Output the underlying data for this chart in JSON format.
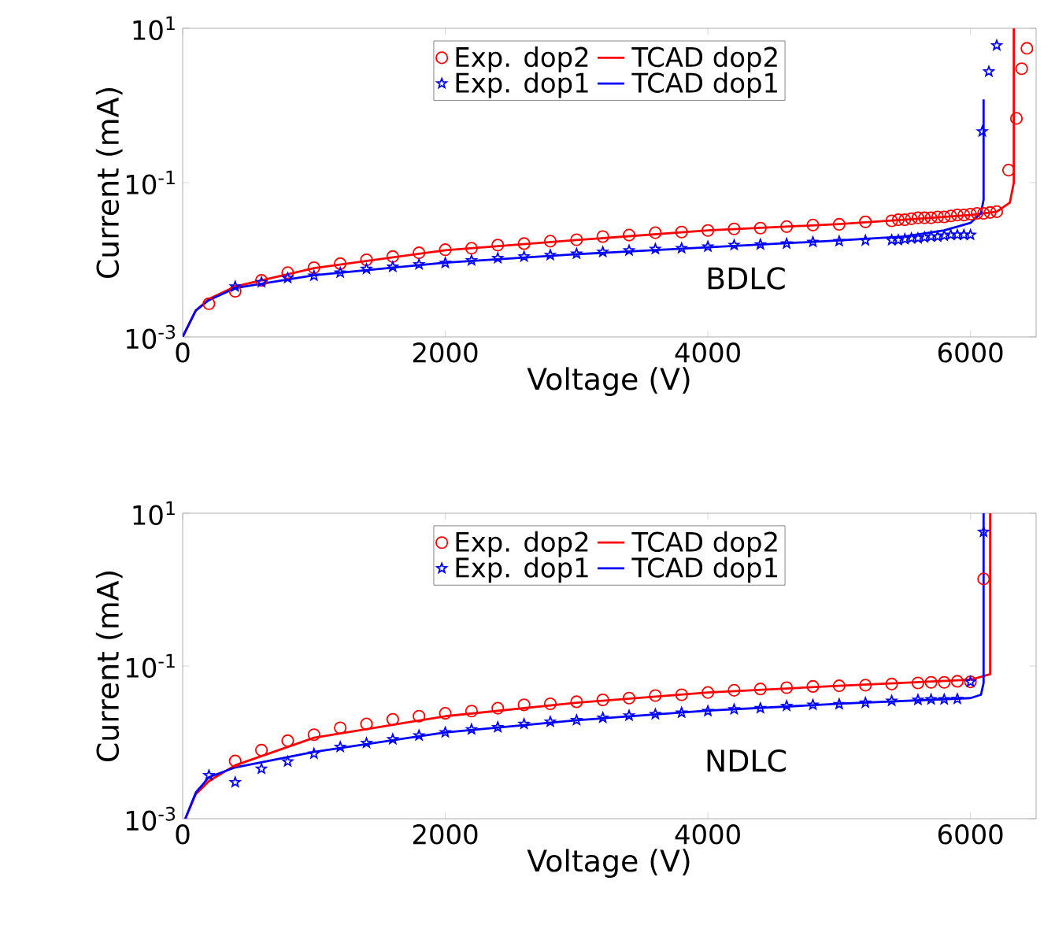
{
  "chart_data": [
    {
      "type": "scatter",
      "xlabel": "Voltage (V)",
      "ylabel": "Current (mA)",
      "log": "y",
      "legend": "top",
      "xlim": [
        0,
        6500
      ],
      "ylim": [
        0.001,
        10
      ],
      "xticks": [
        0,
        2000,
        4000,
        6000
      ],
      "yticks": [
        {
          "value": 0.001,
          "label": "10$^{-3}$"
        },
        {
          "value": 0.1,
          "label": "10$^{-1}$"
        },
        {
          "value": 10,
          "label": "10$^{1}$"
        }
      ],
      "annotations": [
        "BDLC"
      ],
      "series": [
        {
          "name": "Exp. dop2",
          "marker": "circle",
          "color": "#ff0000",
          "x": [
            200,
            400,
            600,
            800,
            1000,
            1200,
            1400,
            1600,
            1800,
            2000,
            2200,
            2400,
            2600,
            2800,
            3000,
            3200,
            3400,
            3600,
            3800,
            4000,
            4200,
            4400,
            4600,
            4800,
            5000,
            5200,
            5400,
            5450,
            5500,
            5550,
            5600,
            5650,
            5700,
            5750,
            5800,
            5850,
            5900,
            5950,
            6000,
            6050,
            6100,
            6150,
            6200,
            6290,
            6350,
            6390,
            6430
          ],
          "values": [
            0.0027,
            0.0039,
            0.0054,
            0.0068,
            0.0079,
            0.0089,
            0.01,
            0.011,
            0.0123,
            0.0135,
            0.0141,
            0.0155,
            0.0162,
            0.0174,
            0.0182,
            0.02,
            0.0209,
            0.0224,
            0.0229,
            0.024,
            0.0251,
            0.0257,
            0.0269,
            0.0282,
            0.0288,
            0.031,
            0.032,
            0.033,
            0.033,
            0.034,
            0.035,
            0.035,
            0.035,
            0.036,
            0.036,
            0.037,
            0.038,
            0.038,
            0.039,
            0.04,
            0.04,
            0.041,
            0.042,
            0.145,
            0.68,
            3.0,
            5.5
          ]
        },
        {
          "name": "TCAD dop2",
          "type": "line",
          "color": "#ff0000",
          "x": [
            0,
            100,
            200,
            400,
            1000,
            2000,
            3000,
            4000,
            5000,
            5600,
            6000,
            6200,
            6300,
            6330,
            6330
          ],
          "values": [
            0.001,
            0.0022,
            0.0031,
            0.0045,
            0.0078,
            0.0133,
            0.018,
            0.024,
            0.029,
            0.034,
            0.038,
            0.042,
            0.055,
            0.1,
            10
          ]
        },
        {
          "name": "Exp. dop1",
          "marker": "star",
          "color": "#0000ff",
          "x": [
            400,
            600,
            800,
            1000,
            1200,
            1400,
            1600,
            1800,
            2000,
            2200,
            2400,
            2600,
            2800,
            3000,
            3200,
            3400,
            3600,
            3800,
            4000,
            4200,
            4400,
            4600,
            4800,
            5000,
            5200,
            5400,
            5450,
            5500,
            5550,
            5600,
            5650,
            5700,
            5750,
            5800,
            5850,
            5900,
            5950,
            6000,
            6090,
            6140,
            6200
          ],
          "values": [
            0.0045,
            0.0051,
            0.0058,
            0.0062,
            0.0068,
            0.0076,
            0.0081,
            0.0087,
            0.0091,
            0.0098,
            0.0105,
            0.011,
            0.0115,
            0.012,
            0.0126,
            0.0132,
            0.0138,
            0.0141,
            0.0148,
            0.0155,
            0.0158,
            0.0162,
            0.017,
            0.0174,
            0.0178,
            0.018,
            0.018,
            0.0185,
            0.019,
            0.019,
            0.0195,
            0.02,
            0.02,
            0.0205,
            0.021,
            0.021,
            0.021,
            0.021,
            0.46,
            2.75,
            6.0
          ]
        },
        {
          "name": "TCAD dop1",
          "type": "line",
          "color": "#0000ff",
          "x": [
            0,
            100,
            200,
            400,
            1000,
            2000,
            3000,
            4000,
            5000,
            5500,
            5800,
            6000,
            6080,
            6100,
            6100
          ],
          "values": [
            0.001,
            0.0022,
            0.003,
            0.0043,
            0.0063,
            0.0092,
            0.0118,
            0.0145,
            0.0178,
            0.02,
            0.024,
            0.03,
            0.04,
            0.06,
            1.2
          ]
        }
      ]
    },
    {
      "type": "scatter",
      "xlabel": "Voltage (V)",
      "ylabel": "Current (mA)",
      "log": "y",
      "legend": "top",
      "xlim": [
        0,
        6500
      ],
      "ylim": [
        0.001,
        10
      ],
      "xticks": [
        0,
        2000,
        4000,
        6000
      ],
      "yticks": [
        {
          "value": 0.001,
          "label": "10$^{-3}$"
        },
        {
          "value": 0.1,
          "label": "10$^{-1}$"
        },
        {
          "value": 10,
          "label": "10$^{1}$"
        }
      ],
      "annotations": [
        "NDLC"
      ],
      "series": [
        {
          "name": "Exp. dop2",
          "marker": "circle",
          "color": "#ff0000",
          "x": [
            400,
            600,
            800,
            1000,
            1200,
            1400,
            1600,
            1800,
            2000,
            2200,
            2400,
            2600,
            2800,
            3000,
            3200,
            3400,
            3600,
            3800,
            4000,
            4200,
            4400,
            4600,
            4800,
            5000,
            5200,
            5400,
            5600,
            5700,
            5800,
            5900,
            6000,
            6100
          ],
          "values": [
            0.0057,
            0.0079,
            0.0105,
            0.0126,
            0.0155,
            0.0174,
            0.02,
            0.022,
            0.024,
            0.0257,
            0.028,
            0.031,
            0.032,
            0.034,
            0.036,
            0.038,
            0.041,
            0.042,
            0.045,
            0.048,
            0.05,
            0.052,
            0.054,
            0.055,
            0.056,
            0.058,
            0.06,
            0.061,
            0.061,
            0.063,
            0.062,
            1.38
          ]
        },
        {
          "name": "TCAD dop2",
          "type": "line",
          "color": "#ff0000",
          "x": [
            20,
            100,
            200,
            400,
            1000,
            2000,
            3000,
            4000,
            5000,
            6000,
            6150,
            6150
          ],
          "values": [
            0.001,
            0.0021,
            0.0031,
            0.005,
            0.0115,
            0.022,
            0.033,
            0.045,
            0.055,
            0.066,
            0.078,
            10
          ]
        },
        {
          "name": "Exp. dop1",
          "marker": "star",
          "color": "#0000ff",
          "x": [
            200,
            400,
            600,
            800,
            1000,
            1200,
            1400,
            1600,
            1800,
            2000,
            2200,
            2400,
            2600,
            2800,
            3000,
            3200,
            3400,
            3600,
            3800,
            4000,
            4200,
            4400,
            4600,
            4800,
            5000,
            5200,
            5400,
            5600,
            5700,
            5800,
            5900,
            6000,
            6100
          ],
          "values": [
            0.0037,
            0.003,
            0.0045,
            0.0056,
            0.0071,
            0.0087,
            0.0098,
            0.011,
            0.0123,
            0.0135,
            0.0148,
            0.0158,
            0.0174,
            0.0186,
            0.0195,
            0.021,
            0.0224,
            0.0234,
            0.0245,
            0.0257,
            0.027,
            0.028,
            0.03,
            0.031,
            0.0316,
            0.033,
            0.035,
            0.036,
            0.0365,
            0.0365,
            0.037,
            0.062,
            5.7
          ]
        },
        {
          "name": "TCAD dop1",
          "type": "line",
          "color": "#0000ff",
          "x": [
            20,
            100,
            200,
            400,
            1000,
            2000,
            3000,
            4000,
            5000,
            6000,
            6080,
            6100,
            6100
          ],
          "values": [
            0.001,
            0.0022,
            0.0035,
            0.0047,
            0.0075,
            0.0135,
            0.0195,
            0.026,
            0.032,
            0.038,
            0.042,
            0.06,
            10
          ]
        }
      ]
    }
  ]
}
